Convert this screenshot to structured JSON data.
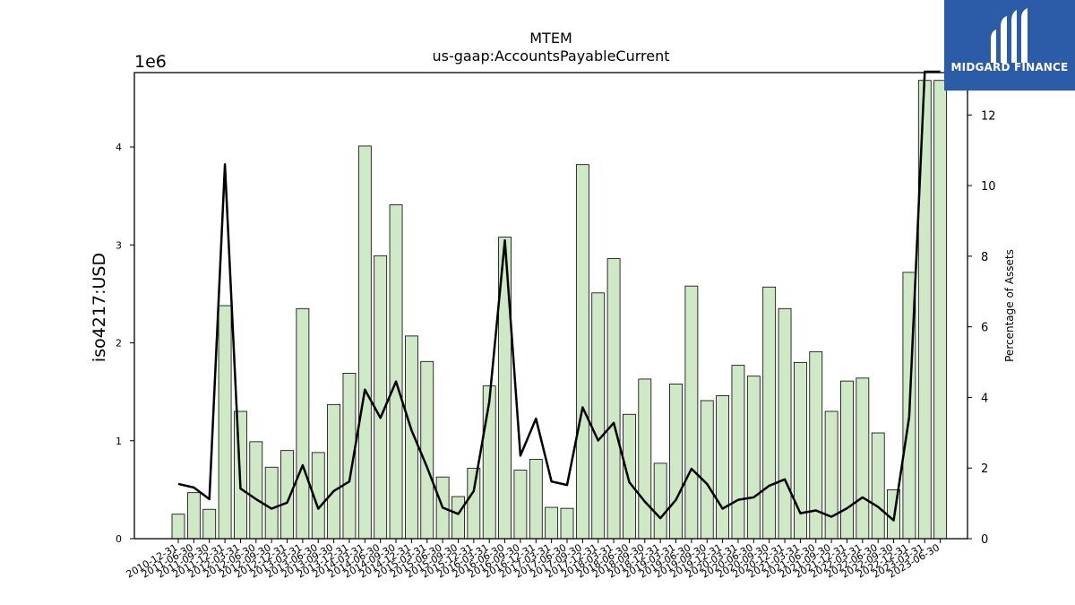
{
  "logo": {
    "text": "MIDGARD FINANCE",
    "color": "#2c5ba8"
  },
  "chart_data": {
    "type": "bar",
    "title": "MTEM",
    "subtitle": "us-gaap:AccountsPayableCurrent",
    "ylabel": "iso4217:USD",
    "y2label": "Percentage of Assets",
    "y_scale_label": "1e6",
    "ylim": [
      0,
      4.76
    ],
    "y2lim": [
      0,
      13.2
    ],
    "yticks": [
      0,
      1,
      2,
      3,
      4
    ],
    "y2ticks": [
      0,
      2,
      4,
      6,
      8,
      10,
      12
    ],
    "bar_color": "#cfe8c6",
    "line_color": "#000000",
    "grid": false,
    "categories": [
      "2010-12-31",
      "2011-06-30",
      "2011-09-30",
      "2011-12-31",
      "2012-03-31",
      "2012-06-30",
      "2012-09-30",
      "2012-12-31",
      "2013-03-31",
      "2013-06-30",
      "2013-09-30",
      "2013-12-31",
      "2014-03-31",
      "2014-06-30",
      "2014-09-30",
      "2014-12-31",
      "2015-03-31",
      "2015-06-30",
      "2015-09-30",
      "2015-12-31",
      "2016-03-31",
      "2016-06-30",
      "2016-09-30",
      "2016-12-31",
      "2017-03-31",
      "2017-06-30",
      "2017-09-30",
      "2017-12-31",
      "2018-03-31",
      "2018-06-30",
      "2018-09-30",
      "2018-12-31",
      "2019-03-31",
      "2019-06-30",
      "2019-09-30",
      "2019-12-31",
      "2020-03-31",
      "2020-06-30",
      "2020-09-30",
      "2020-12-31",
      "2021-03-31",
      "2021-06-30",
      "2021-09-30",
      "2021-12-31",
      "2022-03-31",
      "2022-06-30",
      "2022-09-30",
      "2022-12-31",
      "2023-03-31",
      "2023-06-30"
    ],
    "series": [
      {
        "axis": "left",
        "values": [
          0.25,
          0.47,
          0.3,
          2.38,
          1.3,
          0.99,
          0.73,
          0.9,
          2.35,
          0.88,
          1.37,
          1.69,
          4.01,
          2.89,
          3.41,
          2.07,
          1.81,
          0.63,
          0.43,
          0.72,
          1.56,
          3.08,
          0.7,
          0.81,
          0.32,
          0.31,
          3.82,
          2.51,
          2.86,
          1.27,
          1.63,
          0.77,
          1.58,
          2.58,
          1.41,
          1.46,
          1.77,
          1.66,
          2.57,
          2.35,
          1.8,
          1.91,
          1.3,
          1.61,
          1.64,
          1.08,
          0.5,
          2.72,
          4.68,
          4.68
        ]
      },
      {
        "axis": "right",
        "values": [
          1.55,
          1.45,
          1.12,
          10.6,
          1.42,
          1.12,
          0.85,
          1.02,
          2.08,
          0.85,
          1.35,
          1.62,
          4.22,
          3.42,
          4.45,
          3.07,
          2.02,
          0.88,
          0.7,
          1.35,
          3.88,
          8.45,
          2.35,
          3.4,
          1.62,
          1.52,
          3.72,
          2.78,
          3.28,
          1.6,
          1.05,
          0.58,
          1.1,
          1.98,
          1.55,
          0.85,
          1.1,
          1.17,
          1.5,
          1.68,
          0.72,
          0.8,
          0.62,
          0.86,
          1.17,
          0.9,
          0.52,
          3.45,
          13.4,
          13.4
        ]
      }
    ]
  }
}
